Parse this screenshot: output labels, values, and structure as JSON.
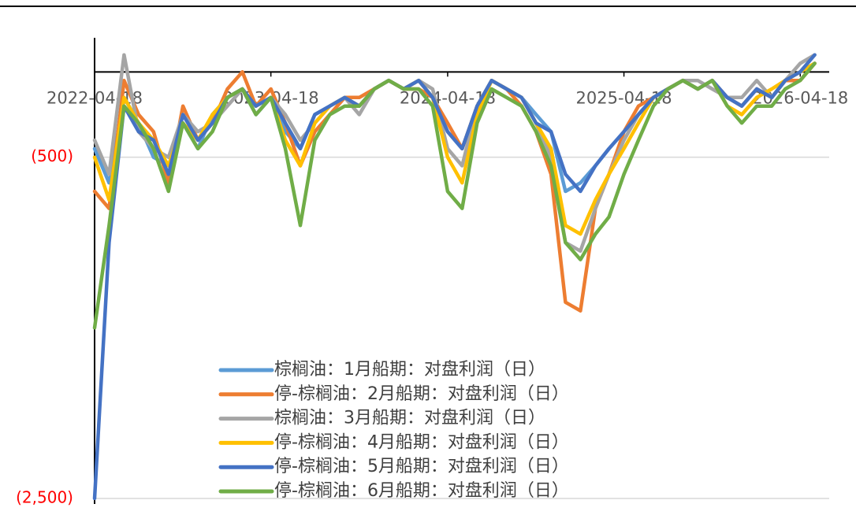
{
  "chart_data": {
    "type": "line",
    "x": [
      "2022-04-18",
      "2022-05-18",
      "2022-06-18",
      "2022-07-18",
      "2022-08-18",
      "2022-09-18",
      "2022-10-18",
      "2022-11-18",
      "2022-12-18",
      "2023-01-18",
      "2023-02-18",
      "2023-03-18",
      "2023-04-18",
      "2023-05-18",
      "2023-06-18",
      "2023-07-18",
      "2023-08-18",
      "2023-09-18",
      "2023-10-18",
      "2023-11-18",
      "2023-12-18",
      "2024-01-18",
      "2024-02-18",
      "2024-03-18",
      "2024-04-18",
      "2024-05-18",
      "2024-06-18",
      "2024-07-18",
      "2024-08-18",
      "2024-09-18",
      "2024-10-18",
      "2024-11-18",
      "2024-12-18",
      "2025-01-18",
      "2025-02-18",
      "2025-03-18",
      "2025-04-18",
      "2025-05-18",
      "2025-06-18",
      "2025-07-18",
      "2025-08-18",
      "2025-09-18",
      "2025-10-18",
      "2025-11-18",
      "2025-12-18",
      "2026-01-18",
      "2026-02-18",
      "2026-03-18",
      "2026-04-18",
      "2026-05-18"
    ],
    "series": [
      {
        "name": "棕榈油：1月船期：对盘利润（日）",
        "color": "#5b9bd5",
        "values": [
          -450,
          -650,
          -150,
          -300,
          -500,
          -550,
          -300,
          -450,
          -250,
          -150,
          -100,
          -250,
          -150,
          -350,
          -450,
          -250,
          -200,
          -150,
          -200,
          -100,
          -50,
          -100,
          -50,
          -150,
          -350,
          -450,
          -200,
          -50,
          -100,
          -150,
          -250,
          -350,
          -700,
          -650,
          -550,
          -450,
          -350,
          -250,
          -150,
          -100,
          -50,
          -100,
          -50,
          -150,
          -200,
          -100,
          -150,
          -50,
          0,
          50
        ]
      },
      {
        "name": "停-棕榈油：2月船期：对盘利润（日）",
        "color": "#ed7d31",
        "values": [
          -700,
          -800,
          -50,
          -250,
          -350,
          -650,
          -200,
          -400,
          -300,
          -100,
          0,
          -200,
          -100,
          -300,
          -550,
          -350,
          -250,
          -150,
          -150,
          -100,
          -50,
          -100,
          -100,
          -150,
          -300,
          -450,
          -200,
          -50,
          -100,
          -200,
          -350,
          -600,
          -1350,
          -1400,
          -800,
          -600,
          -350,
          -200,
          -150,
          -100,
          -50,
          -100,
          -50,
          -150,
          -200,
          -100,
          -150,
          -50,
          -50,
          50
        ]
      },
      {
        "name": "棕榈油：3月船期：对盘利润（日）",
        "color": "#a5a5a5",
        "values": [
          -400,
          -600,
          100,
          -350,
          -450,
          -500,
          -250,
          -350,
          -300,
          -200,
          -100,
          -200,
          -150,
          -250,
          -400,
          -300,
          -200,
          -150,
          -250,
          -100,
          -50,
          -100,
          -50,
          -100,
          -450,
          -550,
          -200,
          -50,
          -100,
          -150,
          -300,
          -500,
          -1000,
          -1050,
          -800,
          -600,
          -400,
          -250,
          -150,
          -100,
          -50,
          -50,
          -100,
          -150,
          -150,
          -50,
          -150,
          -50,
          50,
          100
        ]
      },
      {
        "name": "停-棕榈油：4月船期：对盘利润（日）",
        "color": "#ffc000",
        "values": [
          -500,
          -750,
          -150,
          -300,
          -400,
          -550,
          -300,
          -400,
          -250,
          -150,
          -100,
          -200,
          -150,
          -400,
          -550,
          -300,
          -200,
          -150,
          -200,
          -100,
          -50,
          -100,
          -50,
          -150,
          -500,
          -650,
          -250,
          -50,
          -100,
          -150,
          -300,
          -450,
          -900,
          -950,
          -750,
          -600,
          -450,
          -300,
          -150,
          -100,
          -50,
          -100,
          -50,
          -200,
          -250,
          -150,
          -100,
          -50,
          0,
          50
        ]
      },
      {
        "name": "停-棕榈油：5月船期：对盘利润（日）",
        "color": "#4472c4",
        "values": [
          -2500,
          -1000,
          -200,
          -350,
          -400,
          -600,
          -250,
          -400,
          -300,
          -150,
          -100,
          -200,
          -150,
          -300,
          -450,
          -250,
          -200,
          -150,
          -200,
          -100,
          -50,
          -100,
          -50,
          -150,
          -350,
          -450,
          -200,
          -50,
          -100,
          -150,
          -300,
          -350,
          -600,
          -700,
          -550,
          -450,
          -350,
          -250,
          -150,
          -100,
          -50,
          -100,
          -50,
          -150,
          -200,
          -100,
          -150,
          -50,
          0,
          100
        ]
      },
      {
        "name": "停-棕榈油：6月船期：对盘利润（日）",
        "color": "#70ad47",
        "values": [
          -1500,
          -900,
          -200,
          -300,
          -450,
          -700,
          -300,
          -450,
          -350,
          -150,
          -100,
          -250,
          -150,
          -450,
          -900,
          -400,
          -250,
          -200,
          -200,
          -100,
          -50,
          -100,
          -100,
          -200,
          -700,
          -800,
          -300,
          -100,
          -150,
          -200,
          -350,
          -550,
          -1000,
          -1100,
          -950,
          -850,
          -600,
          -400,
          -200,
          -100,
          -50,
          -100,
          -50,
          -200,
          -300,
          -200,
          -200,
          -100,
          -50,
          50
        ]
      }
    ],
    "xlim": [
      "2022-04-18",
      "2026-06-17"
    ],
    "xticks": [
      "2022-04-18",
      "2023-04-18",
      "2024-04-18",
      "2025-04-18",
      "2026-04-18"
    ],
    "ylim": [
      -2500,
      200
    ],
    "yticks": [
      {
        "value": -500,
        "label": "(500)"
      },
      {
        "value": -2500,
        "label": "(2,500)"
      }
    ],
    "grid": true
  }
}
